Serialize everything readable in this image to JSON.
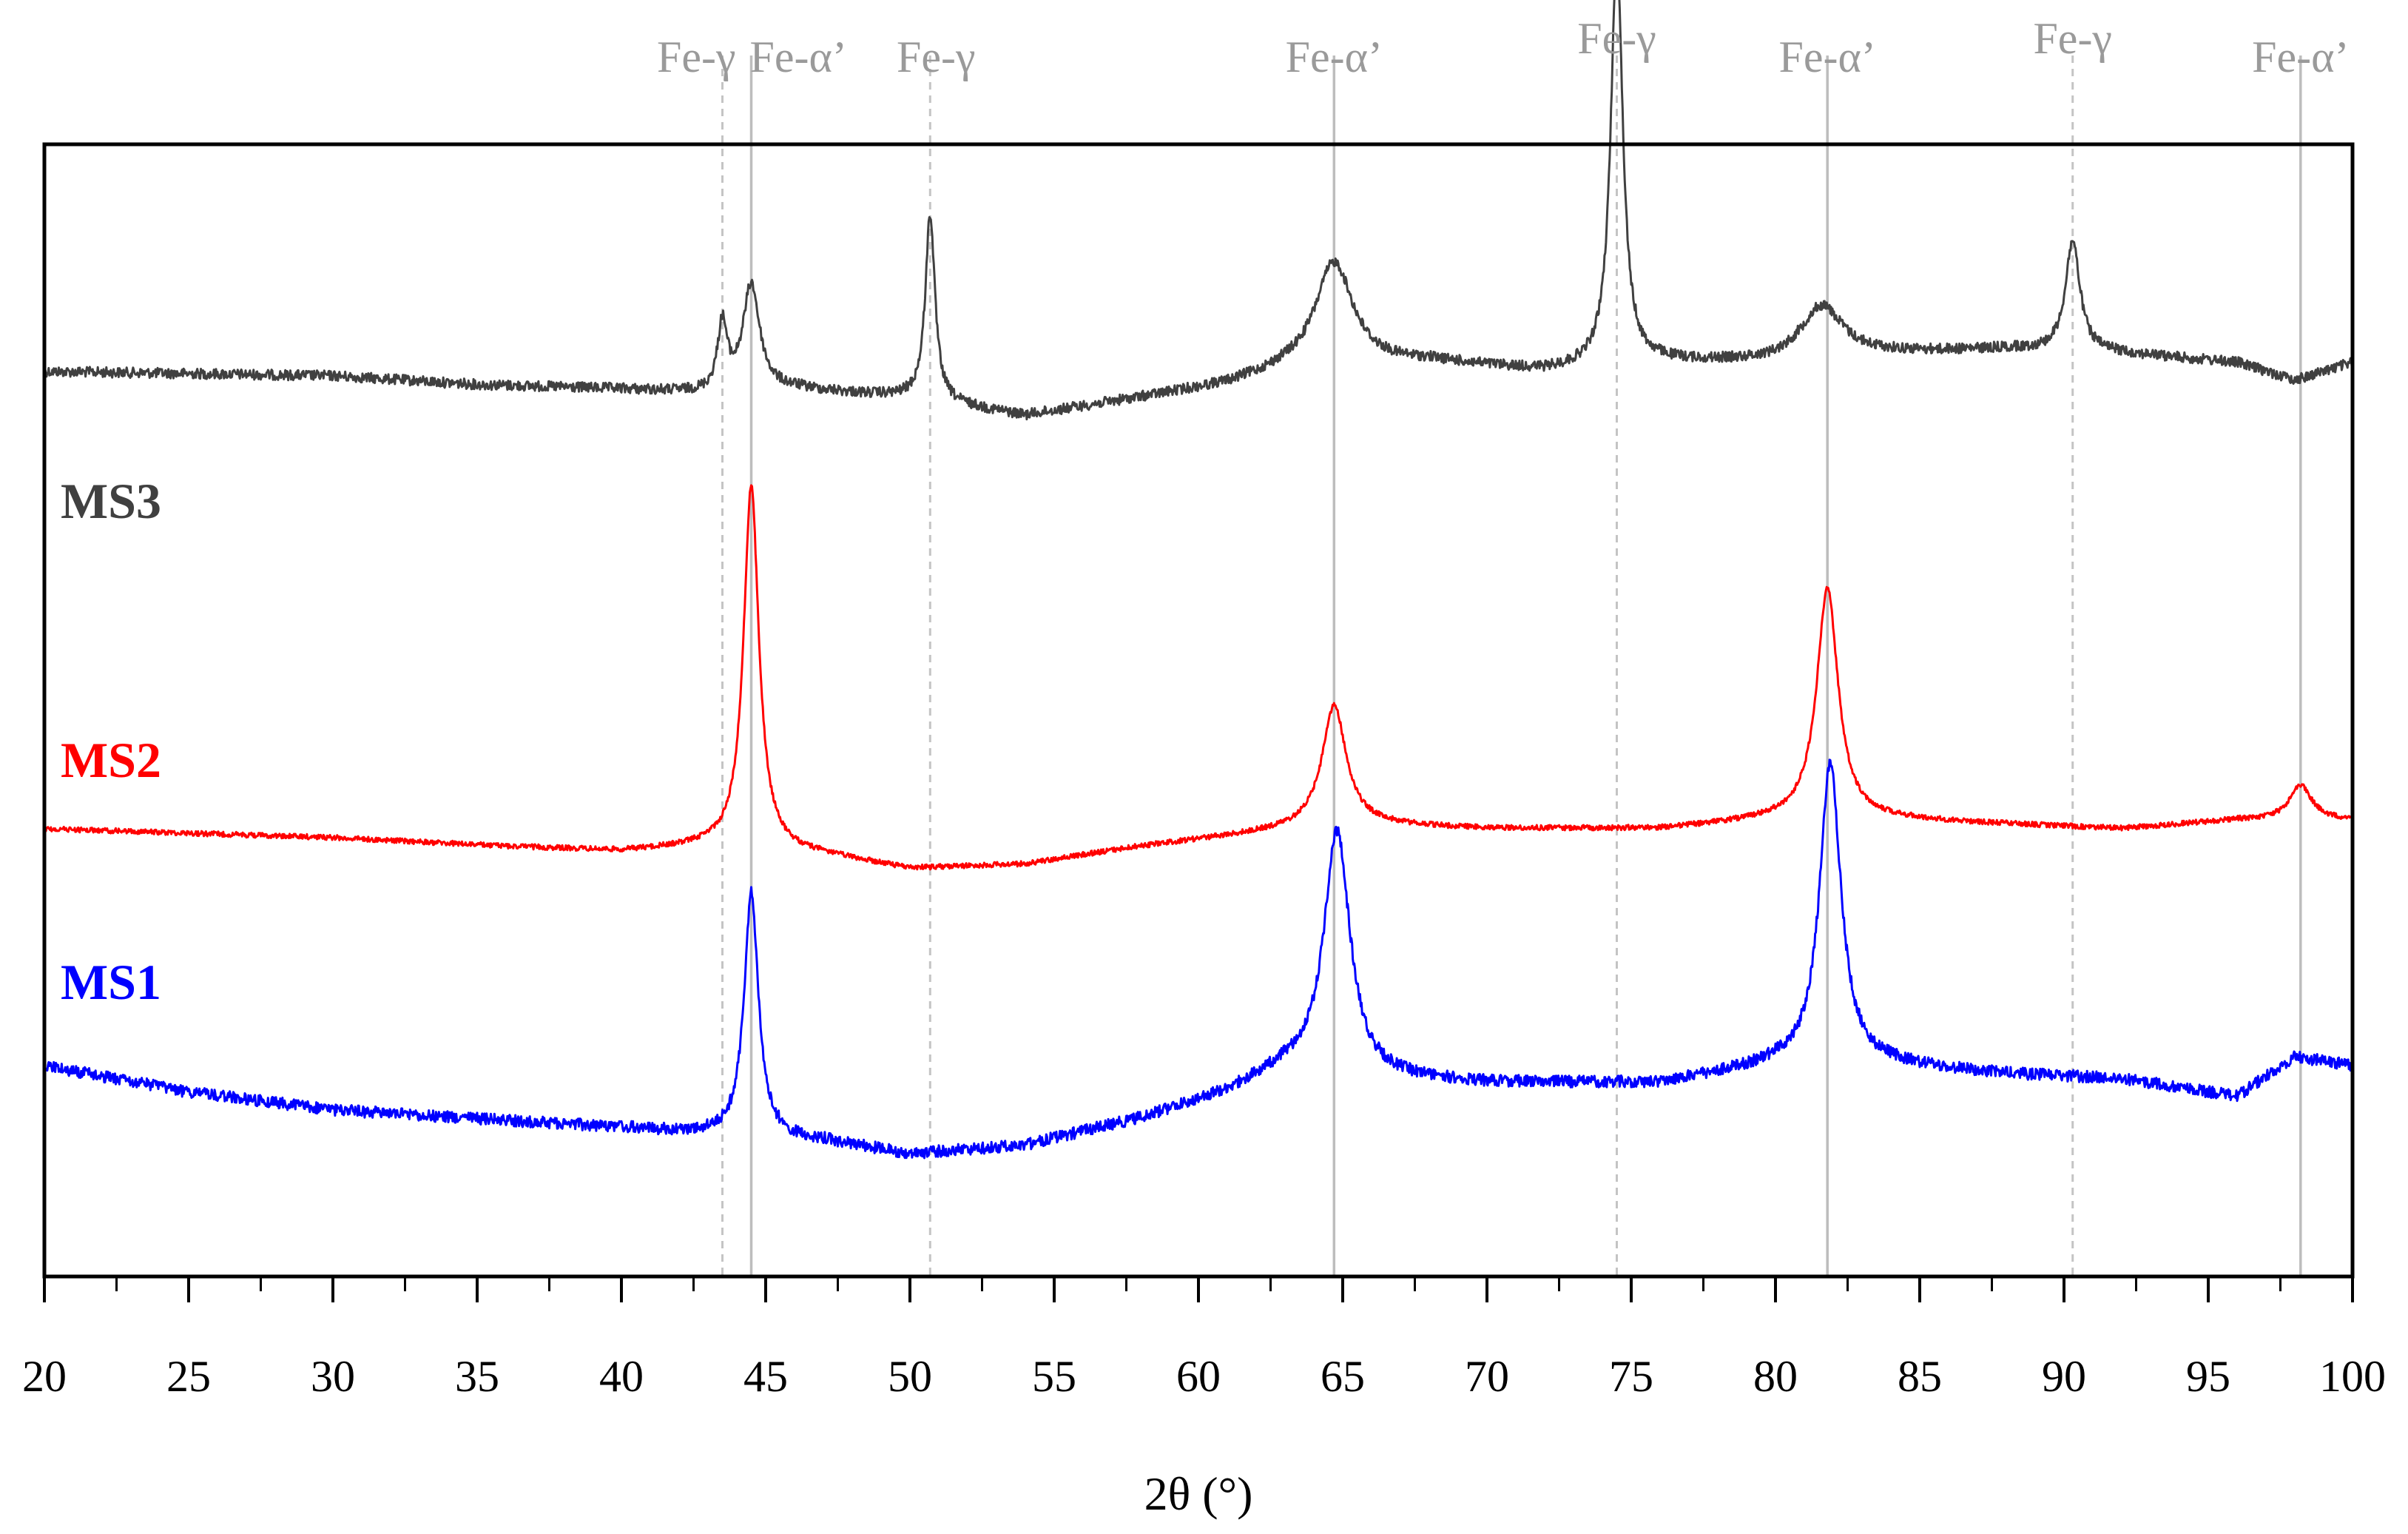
{
  "chart_data": {
    "type": "line",
    "title": "",
    "xlabel": "2θ (°)",
    "ylabel": "",
    "xlim": [
      20,
      100
    ],
    "x_ticks": [
      20,
      25,
      30,
      35,
      40,
      45,
      50,
      55,
      60,
      65,
      70,
      75,
      80,
      85,
      90,
      95,
      100
    ],
    "x_tick_labels": [
      "20",
      "25",
      "30",
      "35",
      "40",
      "45",
      "50",
      "55",
      "60",
      "65",
      "70",
      "75",
      "80",
      "85",
      "90",
      "95",
      "100"
    ],
    "y_ticks_shown": false,
    "grid": false,
    "legend": "none; series labelled inline at left",
    "reference_lines": [
      {
        "label": "Fe-γ",
        "x": 43.5,
        "style": "dashed"
      },
      {
        "label": "Fe-α’",
        "x": 44.5,
        "style": "solid"
      },
      {
        "label": "Fe-γ",
        "x": 50.7,
        "style": "dashed"
      },
      {
        "label": "Fe-α’",
        "x": 64.7,
        "style": "solid"
      },
      {
        "label": "Fe-γ",
        "x": 74.5,
        "style": "dashed"
      },
      {
        "label": "Fe-α’",
        "x": 81.8,
        "style": "solid"
      },
      {
        "label": "Fe-γ",
        "x": 90.3,
        "style": "dashed"
      },
      {
        "label": "Fe-α’",
        "x": 98.2,
        "style": "solid"
      }
    ],
    "series": [
      {
        "name": "MS3",
        "color": "#404040",
        "noise": 7,
        "baseline": [
          [
            20,
            0.48
          ],
          [
            30,
            0.47
          ],
          [
            35,
            0.45
          ],
          [
            40,
            0.44
          ],
          [
            43,
            0.43
          ],
          [
            46,
            0.44
          ],
          [
            50,
            0.42
          ],
          [
            54,
            0.38
          ],
          [
            58,
            0.42
          ],
          [
            61,
            0.45
          ],
          [
            63,
            0.48
          ],
          [
            68,
            0.5
          ],
          [
            72,
            0.48
          ],
          [
            76,
            0.5
          ],
          [
            80,
            0.5
          ],
          [
            84,
            0.52
          ],
          [
            88,
            0.53
          ],
          [
            92,
            0.52
          ],
          [
            96,
            0.5
          ],
          [
            98,
            0.46
          ],
          [
            100,
            0.5
          ]
        ],
        "peaks": [
          {
            "x": 43.5,
            "height": 0.15,
            "width": 0.2
          },
          {
            "x": 44.5,
            "height": 0.24,
            "width": 0.35
          },
          {
            "x": 50.7,
            "height": 0.42,
            "width": 0.2
          },
          {
            "x": 64.7,
            "height": 0.24,
            "width": 0.8
          },
          {
            "x": 74.5,
            "height": 0.93,
            "width": 0.25
          },
          {
            "x": 81.6,
            "height": 0.12,
            "width": 0.9
          },
          {
            "x": 90.3,
            "height": 0.25,
            "width": 0.3
          },
          {
            "x": 98.2,
            "height": 0.0,
            "width": 0.4
          }
        ]
      },
      {
        "name": "MS2",
        "color": "#ff0000",
        "noise": 3.5,
        "baseline": [
          [
            20,
            0.0
          ],
          [
            30,
            -0.02
          ],
          [
            36,
            -0.04
          ],
          [
            40,
            -0.05
          ],
          [
            43,
            -0.04
          ],
          [
            47,
            -0.06
          ],
          [
            50,
            -0.09
          ],
          [
            54,
            -0.08
          ],
          [
            58,
            -0.04
          ],
          [
            62,
            -0.01
          ],
          [
            65,
            0.01
          ],
          [
            70,
            0.0
          ],
          [
            76,
            0.0
          ],
          [
            80,
            0.02
          ],
          [
            84,
            0.02
          ],
          [
            88,
            0.01
          ],
          [
            92,
            0.0
          ],
          [
            96,
            0.02
          ],
          [
            100,
            0.02
          ]
        ],
        "peaks": [
          {
            "x": 44.5,
            "height": 0.82,
            "width": 0.32
          },
          {
            "x": 64.7,
            "height": 0.27,
            "width": 0.5
          },
          {
            "x": 81.8,
            "height": 0.52,
            "width": 0.45
          },
          {
            "x": 98.2,
            "height": 0.08,
            "width": 0.45
          }
        ]
      },
      {
        "name": "MS1",
        "color": "#0000ff",
        "noise": 8,
        "baseline": [
          [
            20,
            0.0
          ],
          [
            25,
            -0.06
          ],
          [
            30,
            -0.1
          ],
          [
            35,
            -0.12
          ],
          [
            40,
            -0.14
          ],
          [
            44,
            -0.16
          ],
          [
            47,
            -0.17
          ],
          [
            50,
            -0.2
          ],
          [
            54,
            -0.18
          ],
          [
            58,
            -0.12
          ],
          [
            61,
            -0.06
          ],
          [
            63,
            -0.01
          ],
          [
            66,
            -0.03
          ],
          [
            70,
            -0.04
          ],
          [
            76,
            -0.04
          ],
          [
            80,
            0.0
          ],
          [
            84,
            0.0
          ],
          [
            88,
            -0.02
          ],
          [
            92,
            -0.03
          ],
          [
            96,
            -0.07
          ],
          [
            98,
            0.02
          ],
          [
            100,
            0.0
          ]
        ],
        "peaks": [
          {
            "x": 44.5,
            "height": 0.55,
            "width": 0.3
          },
          {
            "x": 64.8,
            "height": 0.55,
            "width": 0.55
          },
          {
            "x": 81.9,
            "height": 0.68,
            "width": 0.45
          }
        ]
      }
    ]
  }
}
